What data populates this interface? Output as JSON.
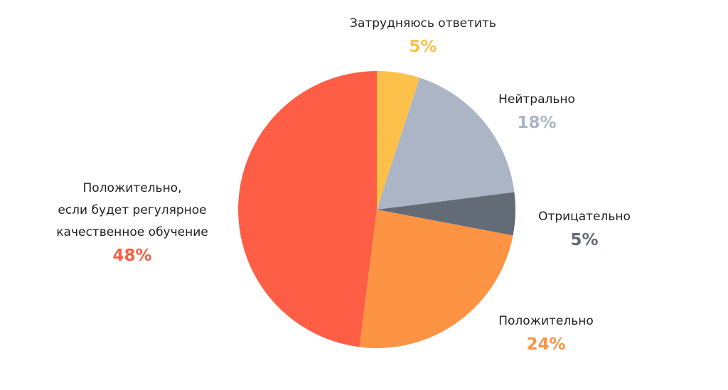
{
  "chart_data": {
    "type": "pie",
    "categories": [
      "Затрудняюсь ответить",
      "Нейтрально",
      "Отрицательно",
      "Положительно",
      "Положительно,\nесли будет регулярное\nкачественное обучение"
    ],
    "values": [
      5,
      18,
      5,
      24,
      48
    ],
    "value_labels": [
      "5%",
      "18%",
      "5%",
      "24%",
      "48%"
    ],
    "colors": [
      "#FDC04A",
      "#ABB5C6",
      "#636B77",
      "#FD9444",
      "#FE5E45"
    ]
  }
}
